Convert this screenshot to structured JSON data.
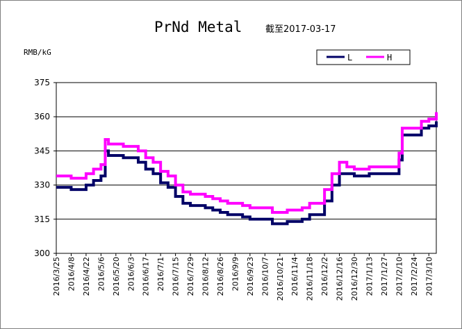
{
  "chart_data": {
    "type": "line",
    "title": "PrNd Metal",
    "subtitle": "截至2017-03-17",
    "ylabel": "RMB/kG",
    "ylim": [
      300,
      375
    ],
    "yticks": [
      300,
      315,
      330,
      345,
      360,
      375
    ],
    "grid": true,
    "legend_position": "top-right",
    "x_tick_labels": [
      "2016/3/25",
      "2016/4/8",
      "2016/4/22",
      "2016/5/6",
      "2016/5/20",
      "2016/6/3",
      "2016/6/17",
      "2016/7/1",
      "2016/7/15",
      "2016/7/29",
      "2016/8/12",
      "2016/8/26",
      "2016/9/9",
      "2016/9/23",
      "2016/10/7",
      "2016/10/21",
      "2016/11/4",
      "2016/11/18",
      "2016/12/2",
      "2016/12/16",
      "2016/12/30",
      "2017/1/13",
      "2017/1/27",
      "2017/2/10",
      "2017/2/24",
      "2017/3/10"
    ],
    "series": [
      {
        "name": "L",
        "color": "#000066",
        "points": [
          [
            "2016/3/25",
            329
          ],
          [
            "2016/4/1",
            329
          ],
          [
            "2016/4/8",
            328
          ],
          [
            "2016/4/15",
            328
          ],
          [
            "2016/4/22",
            330
          ],
          [
            "2016/4/29",
            332
          ],
          [
            "2016/5/6",
            334
          ],
          [
            "2016/5/10",
            345
          ],
          [
            "2016/5/13",
            343
          ],
          [
            "2016/5/20",
            343
          ],
          [
            "2016/5/27",
            342
          ],
          [
            "2016/6/3",
            342
          ],
          [
            "2016/6/10",
            340
          ],
          [
            "2016/6/17",
            337
          ],
          [
            "2016/6/24",
            335
          ],
          [
            "2016/7/1",
            331
          ],
          [
            "2016/7/8",
            329
          ],
          [
            "2016/7/15",
            325
          ],
          [
            "2016/7/22",
            322
          ],
          [
            "2016/7/29",
            321
          ],
          [
            "2016/8/5",
            321
          ],
          [
            "2016/8/12",
            320
          ],
          [
            "2016/8/19",
            319
          ],
          [
            "2016/8/26",
            318
          ],
          [
            "2016/9/2",
            317
          ],
          [
            "2016/9/9",
            317
          ],
          [
            "2016/9/16",
            316
          ],
          [
            "2016/9/23",
            315
          ],
          [
            "2016/9/30",
            315
          ],
          [
            "2016/10/7",
            315
          ],
          [
            "2016/10/14",
            313
          ],
          [
            "2016/10/21",
            313
          ],
          [
            "2016/10/28",
            314
          ],
          [
            "2016/11/4",
            314
          ],
          [
            "2016/11/11",
            315
          ],
          [
            "2016/11/18",
            317
          ],
          [
            "2016/11/25",
            317
          ],
          [
            "2016/12/2",
            323
          ],
          [
            "2016/12/9",
            330
          ],
          [
            "2016/12/16",
            335
          ],
          [
            "2016/12/23",
            335
          ],
          [
            "2016/12/30",
            334
          ],
          [
            "2017/1/6",
            334
          ],
          [
            "2017/1/13",
            335
          ],
          [
            "2017/1/20",
            335
          ],
          [
            "2017/1/27",
            335
          ],
          [
            "2017/2/3",
            335
          ],
          [
            "2017/2/10",
            341
          ],
          [
            "2017/2/13",
            352
          ],
          [
            "2017/2/17",
            352
          ],
          [
            "2017/2/24",
            352
          ],
          [
            "2017/3/3",
            355
          ],
          [
            "2017/3/10",
            356
          ],
          [
            "2017/3/17",
            358
          ]
        ]
      },
      {
        "name": "H",
        "color": "#ff00ff",
        "points": [
          [
            "2016/3/25",
            334
          ],
          [
            "2016/4/1",
            334
          ],
          [
            "2016/4/8",
            333
          ],
          [
            "2016/4/15",
            333
          ],
          [
            "2016/4/22",
            335
          ],
          [
            "2016/4/29",
            337
          ],
          [
            "2016/5/6",
            339
          ],
          [
            "2016/5/10",
            350
          ],
          [
            "2016/5/13",
            348
          ],
          [
            "2016/5/20",
            348
          ],
          [
            "2016/5/27",
            347
          ],
          [
            "2016/6/3",
            347
          ],
          [
            "2016/6/10",
            345
          ],
          [
            "2016/6/17",
            342
          ],
          [
            "2016/6/24",
            340
          ],
          [
            "2016/7/1",
            336
          ],
          [
            "2016/7/8",
            334
          ],
          [
            "2016/7/15",
            330
          ],
          [
            "2016/7/22",
            327
          ],
          [
            "2016/7/29",
            326
          ],
          [
            "2016/8/5",
            326
          ],
          [
            "2016/8/12",
            325
          ],
          [
            "2016/8/19",
            324
          ],
          [
            "2016/8/26",
            323
          ],
          [
            "2016/9/2",
            322
          ],
          [
            "2016/9/9",
            322
          ],
          [
            "2016/9/16",
            321
          ],
          [
            "2016/9/23",
            320
          ],
          [
            "2016/9/30",
            320
          ],
          [
            "2016/10/7",
            320
          ],
          [
            "2016/10/14",
            318
          ],
          [
            "2016/10/21",
            318
          ],
          [
            "2016/10/28",
            319
          ],
          [
            "2016/11/4",
            319
          ],
          [
            "2016/11/11",
            320
          ],
          [
            "2016/11/18",
            322
          ],
          [
            "2016/11/25",
            322
          ],
          [
            "2016/12/2",
            328
          ],
          [
            "2016/12/9",
            335
          ],
          [
            "2016/12/16",
            340
          ],
          [
            "2016/12/23",
            338
          ],
          [
            "2016/12/30",
            337
          ],
          [
            "2017/1/6",
            337
          ],
          [
            "2017/1/13",
            338
          ],
          [
            "2017/1/20",
            338
          ],
          [
            "2017/1/27",
            338
          ],
          [
            "2017/2/3",
            338
          ],
          [
            "2017/2/10",
            344
          ],
          [
            "2017/2/13",
            355
          ],
          [
            "2017/2/17",
            355
          ],
          [
            "2017/2/24",
            355
          ],
          [
            "2017/3/3",
            358
          ],
          [
            "2017/3/10",
            359
          ],
          [
            "2017/3/17",
            362
          ]
        ]
      }
    ]
  }
}
